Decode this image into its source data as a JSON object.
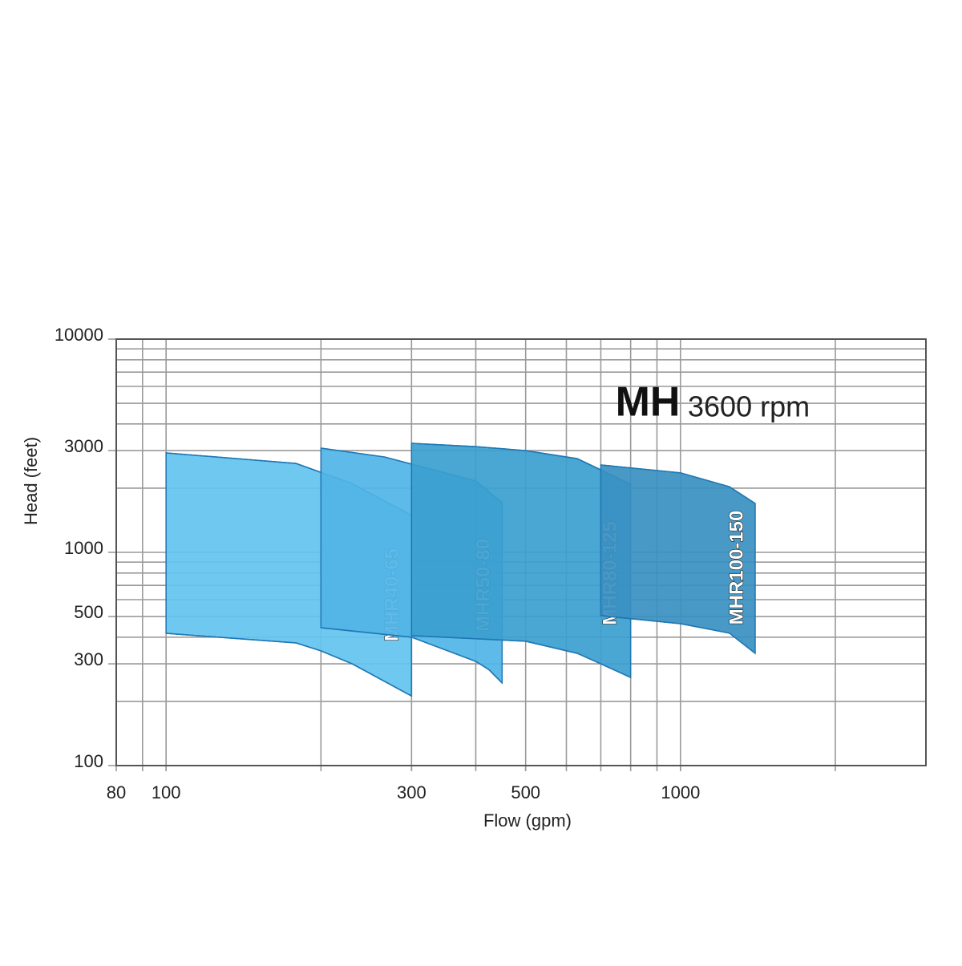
{
  "chart_data": {
    "type": "area",
    "title": "MH",
    "subtitle": "3600 rpm",
    "x_label": "Flow (gpm)",
    "y_label": "Head (feet)",
    "xscale": "log",
    "yscale": "log",
    "grid": true,
    "xlim": [
      80,
      3000
    ],
    "ylim": [
      100,
      10000
    ],
    "xticks": [
      80,
      100,
      300,
      500,
      1000
    ],
    "yticks": [
      100,
      300,
      500,
      1000,
      3000,
      10000
    ],
    "xgrid": [
      90,
      100,
      200,
      300,
      400,
      500,
      600,
      700,
      800,
      900,
      1000,
      2000
    ],
    "ygrid": [
      200,
      300,
      400,
      500,
      600,
      700,
      800,
      900,
      1000,
      2000,
      3000,
      4000,
      5000,
      6000,
      7000,
      8000,
      9000
    ],
    "series": [
      {
        "name": "MHR40-65",
        "color": "#62c3ef",
        "upper_x": [
          100,
          179,
          230,
          300
        ],
        "upper_y": [
          2925,
          2610,
          2100,
          1490
        ],
        "lower_x": [
          100,
          179,
          200,
          230,
          300
        ],
        "lower_y": [
          417,
          376,
          345,
          300,
          212
        ]
      },
      {
        "name": "MHR50-80",
        "color": "#50b4e6",
        "upper_x": [
          200,
          266,
          400,
          450
        ],
        "upper_y": [
          3080,
          2800,
          2160,
          1710
        ],
        "lower_x": [
          200,
          300,
          400,
          424,
          450
        ],
        "lower_y": [
          443,
          400,
          308,
          282,
          244
        ]
      },
      {
        "name": "MHR80-125",
        "color": "#3b9ecf",
        "upper_x": [
          300,
          400,
          500,
          630,
          800
        ],
        "upper_y": [
          3245,
          3130,
          3000,
          2750,
          2090
        ],
        "lower_x": [
          300,
          500,
          630,
          700,
          800
        ],
        "lower_y": [
          407,
          383,
          336,
          300,
          259
        ]
      },
      {
        "name": "MHR100-150",
        "color": "#3a90c2",
        "upper_x": [
          700,
          1000,
          1245,
          1397
        ],
        "upper_y": [
          2570,
          2360,
          2030,
          1695
        ],
        "lower_x": [
          700,
          1000,
          1245,
          1397
        ],
        "lower_y": [
          505,
          463,
          418,
          336
        ]
      }
    ]
  }
}
